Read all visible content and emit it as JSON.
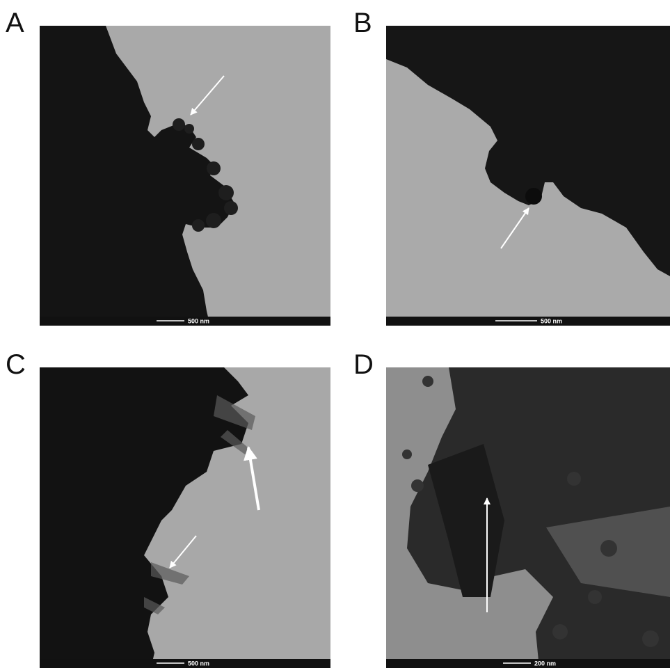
{
  "panels": [
    {
      "label": "A",
      "scale_bar": "500 nm"
    },
    {
      "label": "B",
      "scale_bar": "500 nm"
    },
    {
      "label": "C",
      "scale_bar": "500 nm"
    },
    {
      "label": "D",
      "scale_bar": "200 nm"
    }
  ]
}
